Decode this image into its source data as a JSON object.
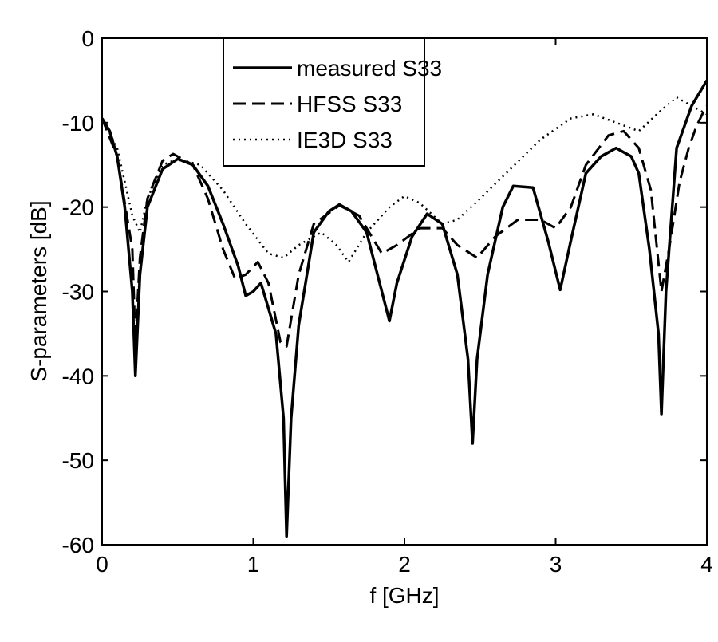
{
  "chart_data": {
    "type": "line",
    "title": "",
    "xlabel": "f [GHz]",
    "ylabel": "S-parameters [dB]",
    "xlim": [
      0,
      4
    ],
    "ylim": [
      -60,
      0
    ],
    "xticks": [
      0,
      1,
      2,
      3,
      4
    ],
    "xtick_labels": [
      "0",
      "1",
      "2",
      "3",
      "4"
    ],
    "yticks": [
      0,
      -10,
      -20,
      -30,
      -40,
      -50,
      -60
    ],
    "ytick_labels": [
      "0",
      "-10",
      "-20",
      "-30",
      "-40",
      "-50",
      "-60"
    ],
    "grid": false,
    "legend_position": "top-center",
    "series": [
      {
        "name": "measured S33",
        "style": "solid",
        "x": [
          0,
          0.05,
          0.1,
          0.15,
          0.2,
          0.22,
          0.25,
          0.3,
          0.4,
          0.5,
          0.6,
          0.7,
          0.8,
          0.9,
          0.95,
          1.0,
          1.05,
          1.1,
          1.15,
          1.2,
          1.22,
          1.25,
          1.3,
          1.4,
          1.5,
          1.57,
          1.65,
          1.75,
          1.85,
          1.9,
          1.95,
          2.05,
          2.15,
          2.25,
          2.35,
          2.42,
          2.45,
          2.48,
          2.55,
          2.65,
          2.72,
          2.85,
          2.95,
          3.03,
          3.1,
          3.2,
          3.3,
          3.4,
          3.5,
          3.55,
          3.62,
          3.68,
          3.7,
          3.73,
          3.8,
          3.9,
          4.0
        ],
        "y": [
          -9.5,
          -11,
          -14,
          -20,
          -30,
          -40,
          -28,
          -20,
          -15.5,
          -14.3,
          -15,
          -17.5,
          -22,
          -27,
          -30.5,
          -30,
          -29,
          -32,
          -35,
          -45,
          -59,
          -45,
          -34,
          -23,
          -20.5,
          -19.7,
          -20.5,
          -23,
          -30,
          -33.5,
          -29,
          -23.5,
          -20.8,
          -22,
          -28,
          -38,
          -48,
          -38,
          -28,
          -20,
          -17.5,
          -17.7,
          -24,
          -29.8,
          -24,
          -16,
          -14,
          -13,
          -14,
          -16,
          -25,
          -35,
          -44.5,
          -30,
          -13,
          -8,
          -5
        ]
      },
      {
        "name": "HFSS S33",
        "style": "dashed",
        "x": [
          0,
          0.1,
          0.2,
          0.22,
          0.25,
          0.3,
          0.4,
          0.47,
          0.6,
          0.7,
          0.8,
          0.88,
          0.95,
          1.03,
          1.1,
          1.18,
          1.22,
          1.3,
          1.4,
          1.57,
          1.7,
          1.8,
          1.85,
          1.95,
          2.1,
          2.25,
          2.35,
          2.48,
          2.6,
          2.75,
          2.9,
          3.0,
          3.1,
          3.2,
          3.35,
          3.45,
          3.55,
          3.63,
          3.7,
          3.75,
          3.82,
          3.88,
          3.93,
          3.97,
          4.0
        ],
        "y": [
          -9.5,
          -14,
          -25,
          -36,
          -26,
          -19,
          -14.5,
          -13.7,
          -15,
          -19,
          -25,
          -28.5,
          -28,
          -26.5,
          -29,
          -36,
          -36.5,
          -28,
          -22,
          -19.8,
          -21,
          -24,
          -25.5,
          -24.5,
          -22.5,
          -22.5,
          -24.5,
          -26,
          -23.5,
          -21.5,
          -21.5,
          -22.5,
          -20,
          -15,
          -11.5,
          -11,
          -13,
          -18,
          -30,
          -25,
          -17,
          -13,
          -10.5,
          -9,
          -8
        ]
      },
      {
        "name": "IE3D S33",
        "style": "dotted",
        "x": [
          0,
          0.1,
          0.2,
          0.25,
          0.3,
          0.4,
          0.5,
          0.65,
          0.8,
          0.95,
          1.1,
          1.2,
          1.3,
          1.45,
          1.55,
          1.63,
          1.75,
          1.9,
          2.0,
          2.1,
          2.25,
          2.35,
          2.5,
          2.7,
          2.9,
          3.1,
          3.25,
          3.4,
          3.55,
          3.7,
          3.8,
          3.9,
          4.0
        ],
        "y": [
          -9.5,
          -13,
          -21,
          -23,
          -19,
          -15,
          -14.3,
          -15,
          -18,
          -22,
          -25.5,
          -26,
          -24.5,
          -23,
          -24.5,
          -26.5,
          -23,
          -20,
          -18.7,
          -19.5,
          -22,
          -21.5,
          -19,
          -15.5,
          -12,
          -9.5,
          -9,
          -10,
          -11,
          -8.5,
          -7,
          -8,
          -9
        ]
      }
    ]
  }
}
